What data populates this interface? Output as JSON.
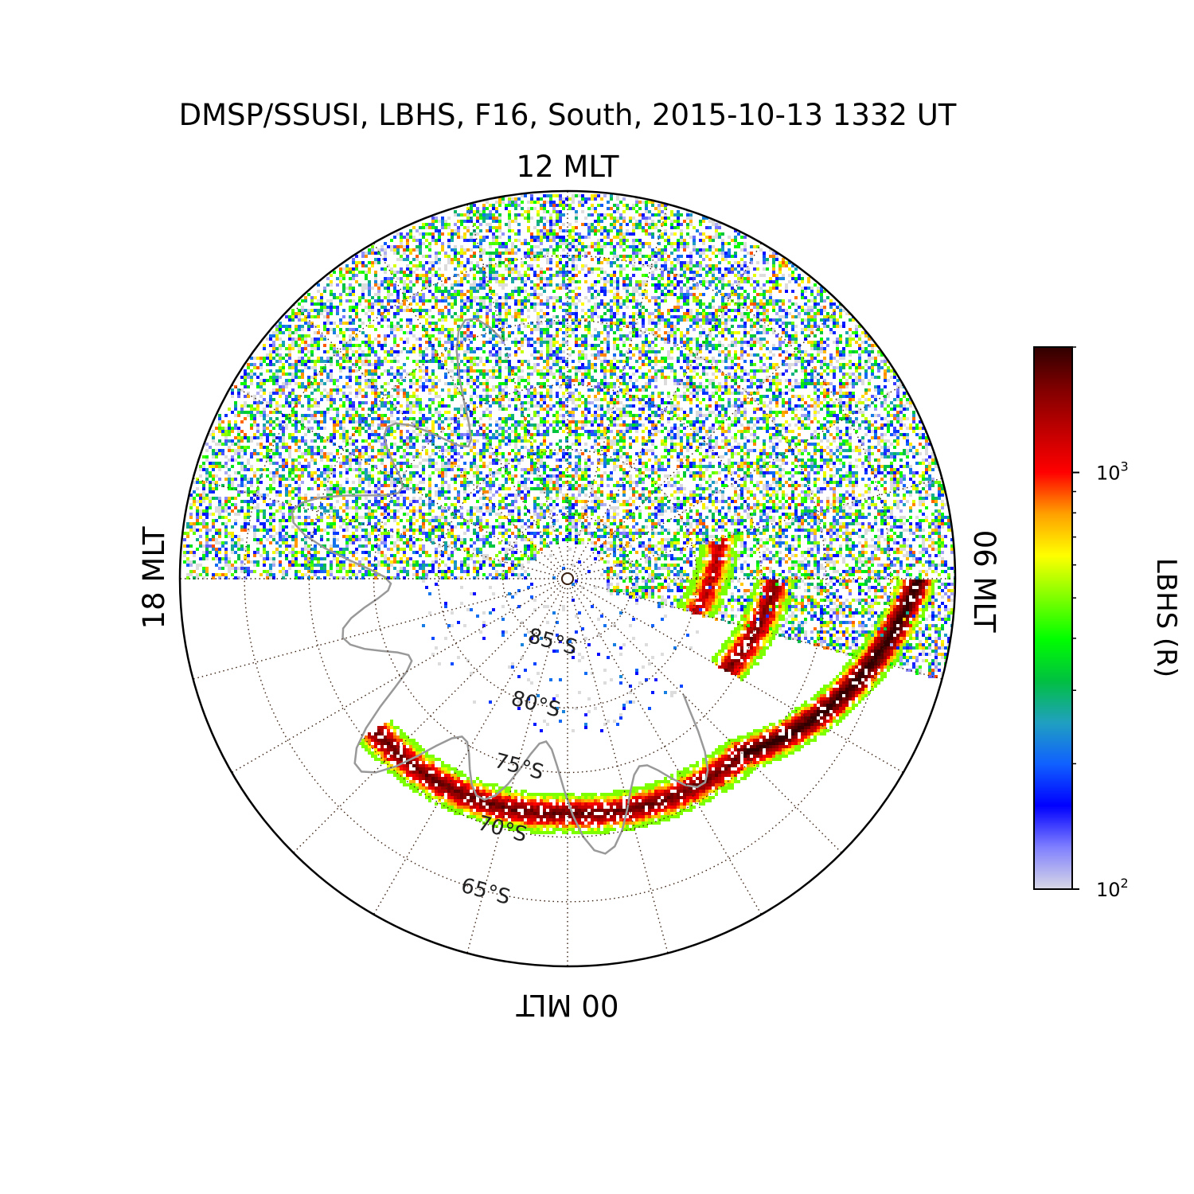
{
  "chart_data": {
    "type": "heatmap",
    "projection": "south-polar",
    "title": "DMSP/SSUSI, LBHS, F16, South, 2015-10-13 1332 UT",
    "mlt_labels": {
      "top": "12 MLT",
      "right": "06 MLT",
      "bottom": "00 MLT",
      "left": "18 MLT"
    },
    "latitude_labels": [
      "85°S",
      "80°S",
      "75°S",
      "70°S",
      "65°S"
    ],
    "latitude_circles": [
      85,
      80,
      75,
      70,
      65
    ],
    "latitude_range": [
      -90,
      -60
    ],
    "meridian_count": 24,
    "colorbar": {
      "label": "LBHS (R)",
      "scale": "log",
      "range": [
        100,
        2000
      ],
      "ticks": [
        {
          "base": "10",
          "exp": "2",
          "value": 100
        },
        {
          "base": "10",
          "exp": "3",
          "value": 1000
        }
      ],
      "colormap": [
        "#d8d8e6",
        "#8080ff",
        "#0000ff",
        "#1060ff",
        "#20a0c0",
        "#00c040",
        "#00ff00",
        "#80ff00",
        "#ffff00",
        "#ffa000",
        "#ff0000",
        "#c00000",
        "#800000",
        "#300000"
      ]
    },
    "colors": {
      "grid": "#3a2010",
      "coastline": "#999999",
      "noise": "#dcdcdc"
    },
    "swath": {
      "mlt_range": [
        5.0,
        18.0
      ],
      "colat_range": [
        3,
        30
      ],
      "mean_intensity": 300
    },
    "auroral_arcs": [
      {
        "mlt": [
          20.5,
          0.0
        ],
        "colat": [
          19,
          18
        ],
        "peak": 1600
      },
      {
        "mlt": [
          0.0,
          3.0
        ],
        "colat": [
          18,
          19
        ],
        "peak": 1600
      },
      {
        "mlt": [
          3.0,
          4.5
        ],
        "colat": [
          19,
          23
        ],
        "peak": 2000
      },
      {
        "mlt": [
          4.5,
          6.0
        ],
        "colat": [
          23,
          27
        ],
        "peak": 2000
      },
      {
        "mlt": [
          4.0,
          6.0
        ],
        "colat": [
          14,
          16
        ],
        "peak": 1500
      },
      {
        "mlt": [
          5.0,
          7.0
        ],
        "colat": [
          10,
          12
        ],
        "peak": 1200
      }
    ]
  }
}
